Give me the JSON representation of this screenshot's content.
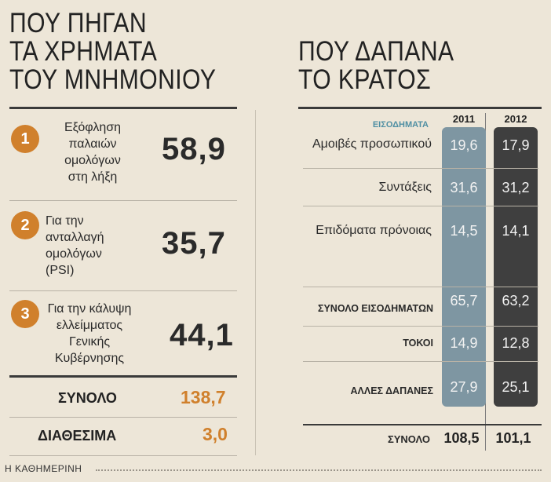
{
  "left": {
    "title": [
      "ΠΟΥ ΠΗΓΑΝ",
      "ΤΑ ΧΡΗΜΑΤΑ",
      "ΤΟΥ ΜΝΗΜΟΝΙΟΥ"
    ],
    "items": [
      {
        "num": "1",
        "lines": [
          "Εξόφληση",
          "παλαιών",
          "ομολόγων",
          "στη λήξη"
        ],
        "value": "58,9"
      },
      {
        "num": "2",
        "lines": [
          "Για την",
          "ανταλλαγή",
          "ομολόγων",
          "(PSI)"
        ],
        "value": "35,7"
      },
      {
        "num": "3",
        "lines": [
          "Για την κάλυψη",
          "ελλείμματος",
          "Γενικής",
          "Κυβέρνησης"
        ],
        "value": "44,1"
      }
    ],
    "total": {
      "label": "ΣΥΝΟΛΟ",
      "value": "138,7"
    },
    "available": {
      "label": "ΔΙΑΘΕΣΙΜΑ",
      "value": "3,0"
    }
  },
  "right": {
    "title": [
      "ΠΟΥ ΔΑΠΑΝΑ",
      "ΤΟ ΚΡΑΤΟΣ"
    ],
    "years": [
      "2011",
      "2012"
    ],
    "section_label": "ΕΙΣΟΔΗΜΑΤΑ",
    "rows": [
      {
        "label": "Αμοιβές προσωπικού",
        "v2011": "19,6",
        "v2012": "17,9"
      },
      {
        "label": "Συντάξεις",
        "v2011": "31,6",
        "v2012": "31,2"
      },
      {
        "label": "Επιδόματα πρόνοιας",
        "v2011": "14,5",
        "v2012": "14,1"
      },
      {
        "label": "ΣΥΝΟΛΟ ΕΙΣΟΔΗΜΑΤΩΝ",
        "v2011": "65,7",
        "v2012": "63,2"
      },
      {
        "label": "ΤΟΚΟΙ",
        "v2011": "14,9",
        "v2012": "12,8"
      },
      {
        "label": "ΑΛΛΕΣ ΔΑΠΑΝΕΣ",
        "v2011": "27,9",
        "v2012": "25,1"
      }
    ],
    "total": {
      "label": "ΣΥΝΟΛΟ",
      "v2011": "108,5",
      "v2012": "101,1"
    }
  },
  "source": "Η ΚΑΘΗΜΕΡΙΝΗ",
  "colors": {
    "accent": "#d0802c",
    "col2011": "#7e96a2",
    "col2012": "#3f3f3f",
    "section": "#4f8fa3"
  }
}
